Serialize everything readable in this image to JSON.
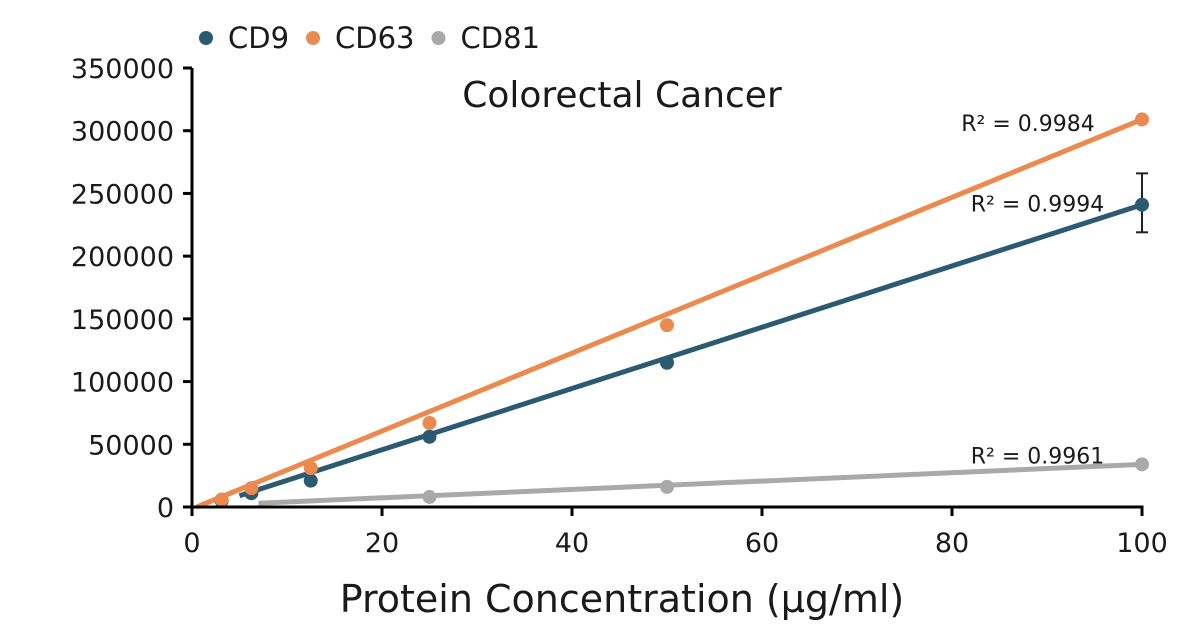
{
  "chart_data": {
    "type": "scatter",
    "title": "Colorectal Cancer",
    "xlabel": "Protein Concentration (µg/ml)",
    "ylabel": "",
    "xlim": [
      0,
      100
    ],
    "ylim": [
      0,
      350000
    ],
    "x_ticks": [
      0,
      20,
      40,
      60,
      80,
      100
    ],
    "y_ticks": [
      0,
      50000,
      100000,
      150000,
      200000,
      250000,
      300000,
      350000
    ],
    "grid": false,
    "legend_position": "top-left",
    "series": [
      {
        "name": "CD9",
        "color": "#2b5a73",
        "x": [
          3.125,
          6.25,
          12.5,
          25,
          50,
          100
        ],
        "y": [
          5000,
          11000,
          21000,
          56000,
          115000,
          241000
        ],
        "trendline": {
          "x": [
            5,
            100
          ],
          "y": [
            9000,
            241000
          ]
        },
        "r2_label": "R² = 0.9994",
        "r2_position": [
          89,
          242000
        ],
        "error_bar": {
          "x": 100,
          "low": 219000,
          "high": 266000
        }
      },
      {
        "name": "CD63",
        "color": "#ec8a4e",
        "x": [
          3.125,
          6.25,
          12.5,
          25,
          50,
          100
        ],
        "y": [
          6000,
          15000,
          31000,
          67000,
          145000,
          309000
        ],
        "trendline": {
          "x": [
            0.5,
            100
          ],
          "y": [
            0,
            309000
          ]
        },
        "r2_label": "R² = 0.9984",
        "r2_position": [
          88,
          306000
        ]
      },
      {
        "name": "CD81",
        "color": "#a9a9a9",
        "x": [
          25,
          50,
          100
        ],
        "y": [
          8000,
          16000,
          34000
        ],
        "trendline": {
          "x": [
            7,
            100
          ],
          "y": [
            3000,
            34000
          ]
        },
        "r2_label": "R² = 0.9961",
        "r2_position": [
          89,
          41000
        ]
      }
    ]
  }
}
